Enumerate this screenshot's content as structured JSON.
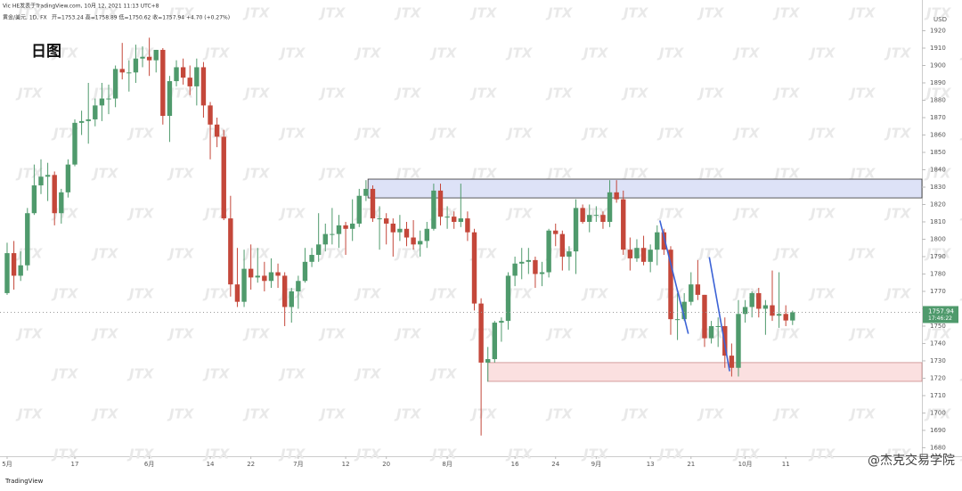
{
  "header": {
    "byline": "Vic HE发表于TradingView.com, 10月 12, 2021 11:13 UTC+8",
    "symbol": "黄金/美元, 1D, FX",
    "ohlc_text": "开=1753.24  高=1758.89  低=1750.62  收=1757.94  +4.70 (+0.27%)"
  },
  "label": "日图",
  "currency": "USD",
  "watermark": "JTX",
  "footer_logo": "TradingView",
  "footer_credit": "@杰克交易学院",
  "chart_data": {
    "type": "candlestick",
    "up_color": "#4f9a6c",
    "down_color": "#c4473a",
    "xlim": [
      -1.05,
      135.1
    ],
    "ylim": [
      1675.1,
      1937.7
    ],
    "yticks": [
      1680,
      1690,
      1700,
      1710,
      1720,
      1730,
      1740,
      1750,
      1760,
      1770,
      1780,
      1790,
      1800,
      1810,
      1820,
      1830,
      1840,
      1850,
      1860,
      1870,
      1880,
      1890,
      1900,
      1910,
      1920
    ],
    "xticks": [
      {
        "value": 0,
        "label": "5月"
      },
      {
        "value": 10,
        "label": "17"
      },
      {
        "value": 21,
        "label": "6月"
      },
      {
        "value": 30,
        "label": "14"
      },
      {
        "value": 36,
        "label": "22"
      },
      {
        "value": 43,
        "label": "7月"
      },
      {
        "value": 50,
        "label": "12"
      },
      {
        "value": 56,
        "label": "20"
      },
      {
        "value": 65,
        "label": "8月"
      },
      {
        "value": 75,
        "label": "16"
      },
      {
        "value": 81,
        "label": "24"
      },
      {
        "value": 87,
        "label": "9月"
      },
      {
        "value": 95,
        "label": "13"
      },
      {
        "value": 101,
        "label": "21"
      },
      {
        "value": 109,
        "label": "10月"
      },
      {
        "value": 115,
        "label": "11"
      }
    ],
    "ohlc": [
      [
        1769,
        1798,
        1768,
        1792
      ],
      [
        1792,
        1799,
        1771,
        1779
      ],
      [
        1779,
        1793,
        1776,
        1785
      ],
      [
        1785,
        1818,
        1782,
        1815
      ],
      [
        1815,
        1843,
        1814,
        1831
      ],
      [
        1831,
        1846,
        1826,
        1836
      ],
      [
        1836,
        1844,
        1822,
        1837
      ],
      [
        1837,
        1839,
        1808,
        1815
      ],
      [
        1815,
        1829,
        1809,
        1827
      ],
      [
        1827,
        1846,
        1824,
        1843
      ],
      [
        1843,
        1869,
        1842,
        1867
      ],
      [
        1867,
        1874,
        1860,
        1868
      ],
      [
        1868,
        1890,
        1855,
        1869
      ],
      [
        1869,
        1881,
        1865,
        1877
      ],
      [
        1877,
        1890,
        1868,
        1881
      ],
      [
        1881,
        1889,
        1872,
        1881
      ],
      [
        1881,
        1900,
        1876,
        1898
      ],
      [
        1898,
        1913,
        1892,
        1896
      ],
      [
        1896,
        1903,
        1885,
        1896
      ],
      [
        1896,
        1912,
        1890,
        1904
      ],
      [
        1904,
        1911,
        1899,
        1905
      ],
      [
        1905,
        1916,
        1894,
        1903
      ],
      [
        1903,
        1909,
        1896,
        1909
      ],
      [
        1909,
        1910,
        1866,
        1871
      ],
      [
        1871,
        1894,
        1856,
        1891
      ],
      [
        1891,
        1903,
        1888,
        1899
      ],
      [
        1899,
        1904,
        1889,
        1893
      ],
      [
        1893,
        1900,
        1883,
        1888
      ],
      [
        1888,
        1904,
        1877,
        1899
      ],
      [
        1899,
        1902,
        1870,
        1877
      ],
      [
        1877,
        1879,
        1846,
        1866
      ],
      [
        1866,
        1870,
        1853,
        1859
      ],
      [
        1859,
        1863,
        1811,
        1812
      ],
      [
        1812,
        1825,
        1767,
        1774
      ],
      [
        1774,
        1795,
        1761,
        1764
      ],
      [
        1764,
        1794,
        1761,
        1783
      ],
      [
        1783,
        1797,
        1771,
        1778
      ],
      [
        1778,
        1795,
        1775,
        1779
      ],
      [
        1779,
        1787,
        1770,
        1776
      ],
      [
        1776,
        1789,
        1772,
        1781
      ],
      [
        1781,
        1786,
        1772,
        1779
      ],
      [
        1779,
        1781,
        1750,
        1761
      ],
      [
        1761,
        1772,
        1752,
        1770
      ],
      [
        1770,
        1779,
        1760,
        1776
      ],
      [
        1776,
        1795,
        1775,
        1787
      ],
      [
        1787,
        1795,
        1784,
        1791
      ],
      [
        1791,
        1815,
        1787,
        1797
      ],
      [
        1797,
        1809,
        1793,
        1803
      ],
      [
        1803,
        1818,
        1797,
        1803
      ],
      [
        1803,
        1814,
        1795,
        1808
      ],
      [
        1808,
        1810,
        1791,
        1806
      ],
      [
        1806,
        1823,
        1799,
        1809
      ],
      [
        1809,
        1829,
        1807,
        1825
      ],
      [
        1825,
        1834,
        1822,
        1829
      ],
      [
        1829,
        1831,
        1810,
        1812
      ],
      [
        1812,
        1819,
        1794,
        1812
      ],
      [
        1812,
        1815,
        1797,
        1809
      ],
      [
        1809,
        1812,
        1790,
        1804
      ],
      [
        1804,
        1814,
        1799,
        1806
      ],
      [
        1806,
        1810,
        1796,
        1801
      ],
      [
        1801,
        1811,
        1794,
        1797
      ],
      [
        1797,
        1805,
        1790,
        1799
      ],
      [
        1799,
        1810,
        1795,
        1806
      ],
      [
        1806,
        1832,
        1805,
        1828
      ],
      [
        1828,
        1832,
        1808,
        1813
      ],
      [
        1813,
        1819,
        1806,
        1813
      ],
      [
        1813,
        1816,
        1806,
        1810
      ],
      [
        1810,
        1832,
        1807,
        1812
      ],
      [
        1812,
        1816,
        1799,
        1804
      ],
      [
        1804,
        1806,
        1759,
        1763
      ],
      [
        1763,
        1766,
        1687,
        1729
      ],
      [
        1729,
        1738,
        1718,
        1731
      ],
      [
        1731,
        1753,
        1729,
        1752
      ],
      [
        1752,
        1755,
        1741,
        1753
      ],
      [
        1753,
        1781,
        1748,
        1779
      ],
      [
        1779,
        1790,
        1773,
        1786
      ],
      [
        1786,
        1795,
        1777,
        1787
      ],
      [
        1787,
        1795,
        1780,
        1788
      ],
      [
        1788,
        1790,
        1772,
        1780
      ],
      [
        1780,
        1787,
        1773,
        1781
      ],
      [
        1781,
        1806,
        1778,
        1805
      ],
      [
        1805,
        1809,
        1796,
        1803
      ],
      [
        1803,
        1805,
        1782,
        1790
      ],
      [
        1790,
        1796,
        1782,
        1793
      ],
      [
        1793,
        1823,
        1780,
        1818
      ],
      [
        1818,
        1820,
        1809,
        1810
      ],
      [
        1810,
        1820,
        1804,
        1814
      ],
      [
        1814,
        1819,
        1810,
        1814
      ],
      [
        1814,
        1816,
        1806,
        1810
      ],
      [
        1810,
        1834,
        1807,
        1827
      ],
      [
        1827,
        1834,
        1821,
        1823
      ],
      [
        1823,
        1828,
        1791,
        1794
      ],
      [
        1794,
        1801,
        1782,
        1789
      ],
      [
        1789,
        1800,
        1787,
        1795
      ],
      [
        1795,
        1802,
        1785,
        1787
      ],
      [
        1787,
        1797,
        1781,
        1794
      ],
      [
        1794,
        1808,
        1785,
        1804
      ],
      [
        1804,
        1806,
        1791,
        1794
      ],
      [
        1794,
        1796,
        1745,
        1754
      ],
      [
        1754,
        1769,
        1742,
        1754
      ],
      [
        1754,
        1769,
        1753,
        1764
      ],
      [
        1764,
        1781,
        1762,
        1774
      ],
      [
        1774,
        1788,
        1765,
        1768
      ],
      [
        1768,
        1768,
        1738,
        1743
      ],
      [
        1743,
        1753,
        1740,
        1750
      ],
      [
        1750,
        1755,
        1738,
        1750
      ],
      [
        1750,
        1755,
        1726,
        1733
      ],
      [
        1733,
        1740,
        1721,
        1726
      ],
      [
        1726,
        1765,
        1721,
        1757
      ],
      [
        1757,
        1765,
        1752,
        1761
      ],
      [
        1761,
        1770,
        1755,
        1769
      ],
      [
        1769,
        1772,
        1755,
        1760
      ],
      [
        1760,
        1765,
        1745,
        1762
      ],
      [
        1762,
        1782,
        1753,
        1756
      ],
      [
        1756,
        1781,
        1749,
        1757
      ],
      [
        1757,
        1762,
        1750,
        1753.24
      ],
      [
        1753.24,
        1758.89,
        1750.62,
        1757.94
      ]
    ],
    "last_price": {
      "value": 1757.94,
      "label": "1757.94",
      "countdown": "17:46:22",
      "color": "#4f9a6c"
    },
    "zones": [
      {
        "from": 53.3,
        "top": 1834.6,
        "bottom": 1823.8,
        "fill": "#dde2f7",
        "stroke": "#333"
      },
      {
        "from": 71,
        "top": 1729,
        "bottom": 1718.2,
        "fill": "#fbe0e0",
        "stroke": "#c98a8a"
      }
    ],
    "trendlines": [
      {
        "x": [
          96.4,
          100.6
        ],
        "y": [
          1810.8,
          1745.6
        ],
        "color": "#3c63d6"
      },
      {
        "x": [
          103.7,
          106.7
        ],
        "y": [
          1789.7,
          1724
        ],
        "color": "#3c63d6"
      }
    ]
  }
}
